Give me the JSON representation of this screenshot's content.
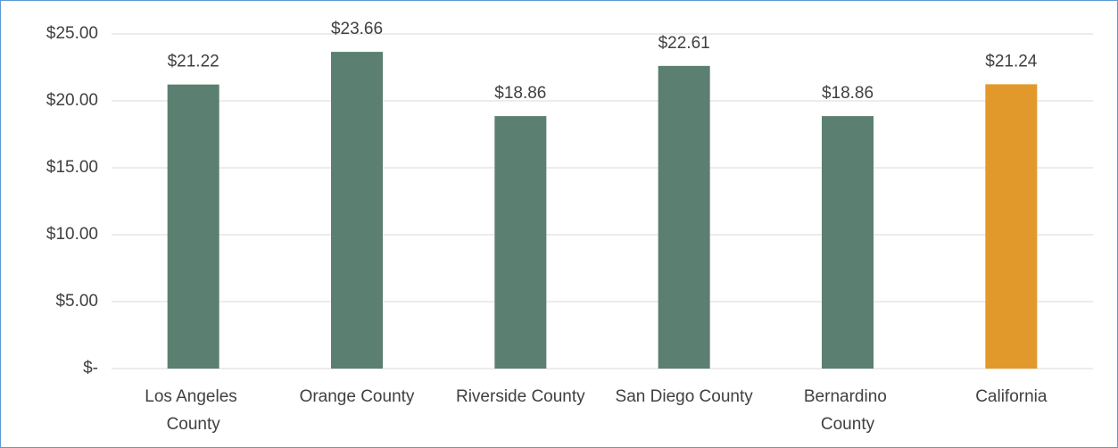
{
  "chart_data": {
    "type": "bar",
    "categories": [
      "Los Angeles County",
      "Orange County",
      "Riverside County",
      "San Diego County",
      "Bernardino County",
      "California"
    ],
    "values": [
      21.22,
      23.66,
      18.86,
      22.61,
      18.86,
      21.24
    ],
    "value_labels": [
      "$21.22",
      "$23.66",
      "$18.86",
      "$22.61",
      "$18.86",
      "$21.24"
    ],
    "colors": [
      "#5b7f70",
      "#5b7f70",
      "#5b7f70",
      "#5b7f70",
      "#5b7f70",
      "#e2992b"
    ],
    "ylim": [
      0,
      25
    ],
    "yticks": [
      {
        "value": 0,
        "label": "$-"
      },
      {
        "value": 5,
        "label": "$5.00"
      },
      {
        "value": 10,
        "label": "$10.00"
      },
      {
        "value": 15,
        "label": "$15.00"
      },
      {
        "value": 20,
        "label": "$20.00"
      },
      {
        "value": 25,
        "label": "$25.00"
      }
    ],
    "grid": true
  }
}
